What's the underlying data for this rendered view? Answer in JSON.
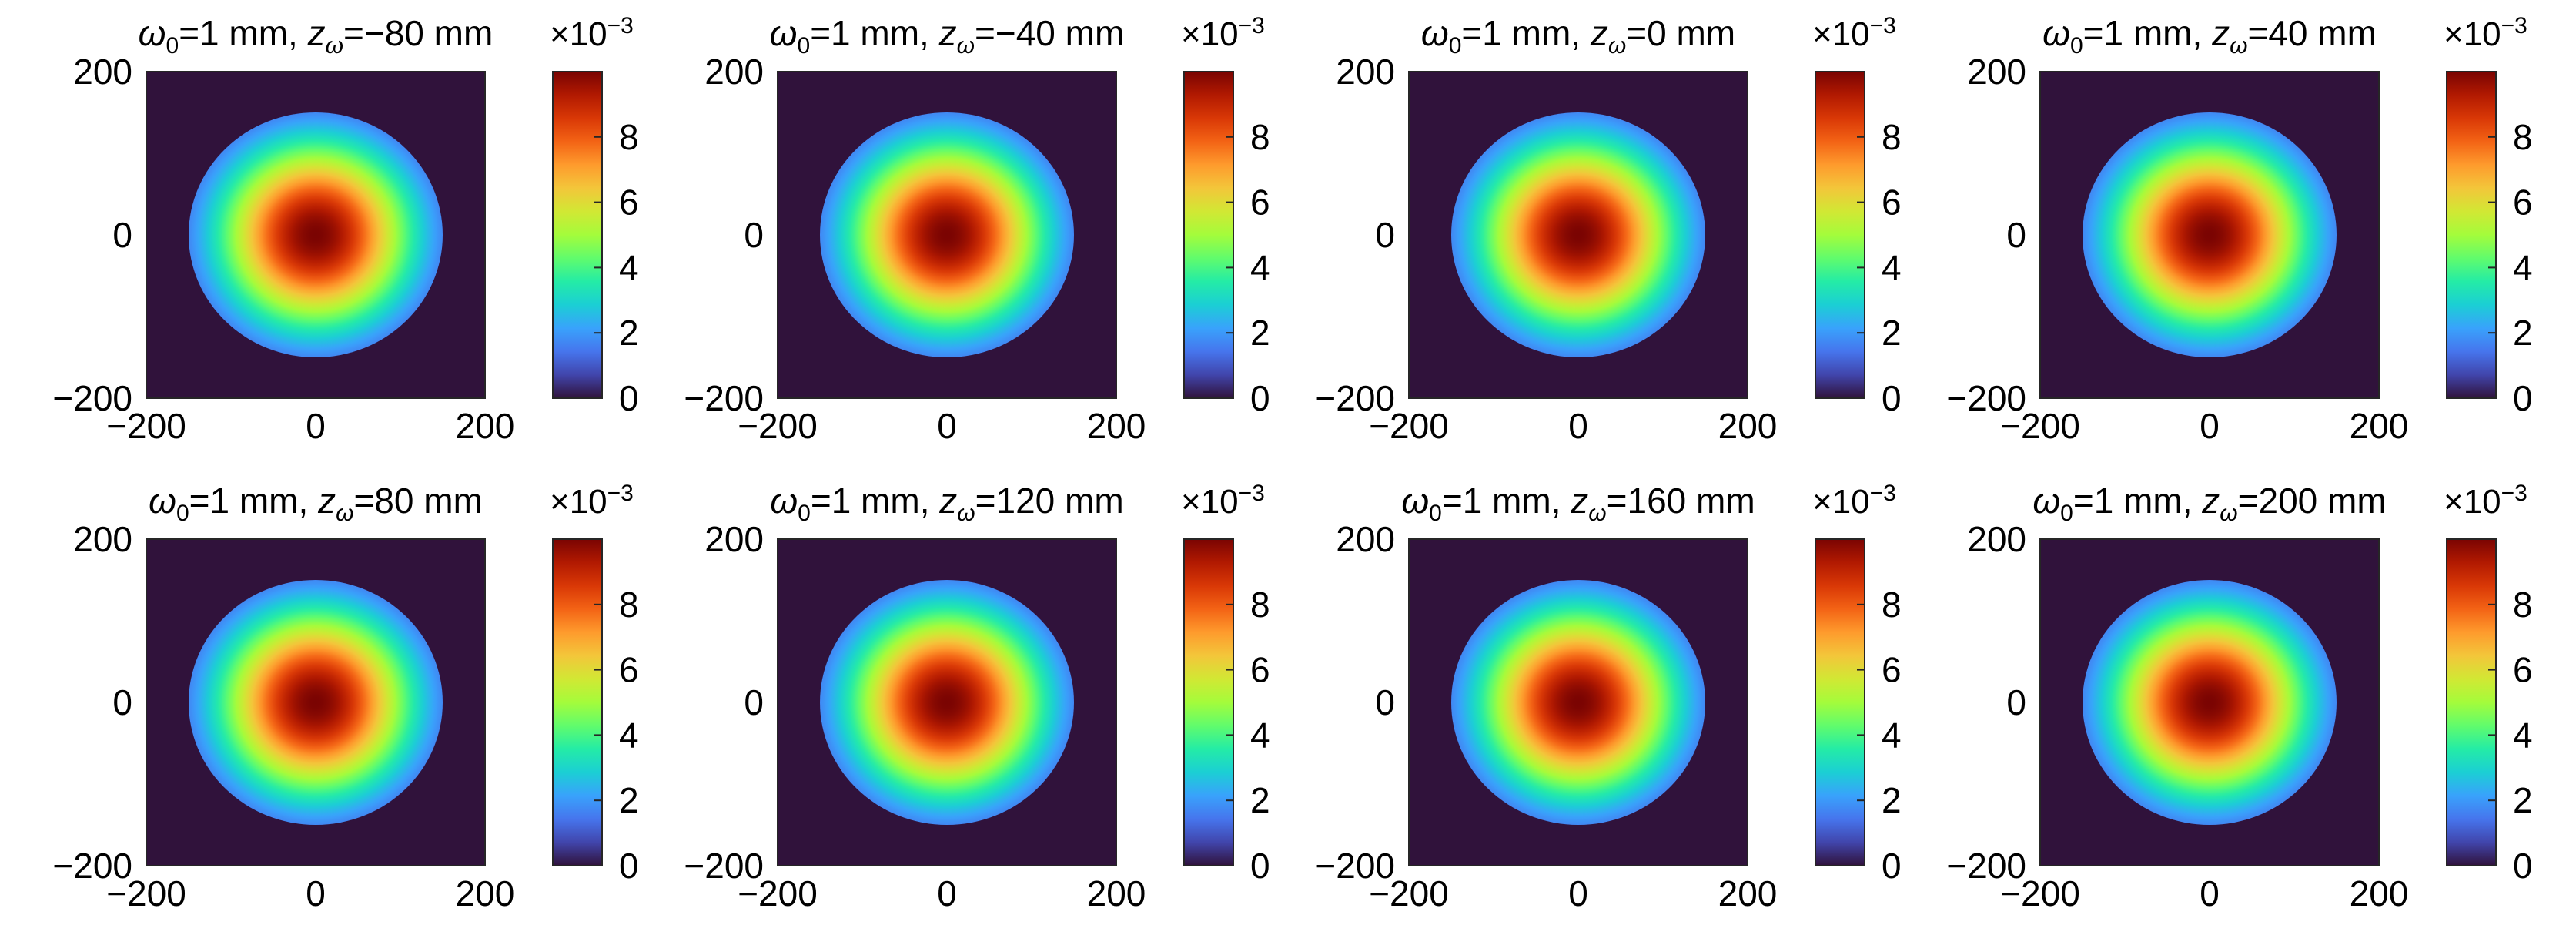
{
  "chart_data": {
    "type": "heatmap",
    "layout": "2x4 grid",
    "colormap": "turbo",
    "beam_waist": "1 mm",
    "grid": false,
    "xlim": [
      -200,
      200
    ],
    "ylim": [
      -200,
      200
    ],
    "xticks": [
      -200,
      0,
      200
    ],
    "yticks": [
      -200,
      0,
      200
    ],
    "clim": [
      0,
      0.01
    ],
    "colorbar_ticks": [
      0,
      2,
      4,
      6,
      8
    ],
    "colorbar_multiplier": "×10",
    "colorbar_exponent": "−3",
    "background_value": 0,
    "aperture_radius": 150,
    "peak_value": 0.01,
    "gaussian_radius": 160,
    "panels": [
      {
        "title_prefix": "=1 mm, ",
        "z_value": "=−80 mm"
      },
      {
        "title_prefix": "=1 mm, ",
        "z_value": "=−40 mm"
      },
      {
        "title_prefix": "=1 mm, ",
        "z_value": "=0 mm"
      },
      {
        "title_prefix": "=1 mm, ",
        "z_value": "=40 mm"
      },
      {
        "title_prefix": "=1 mm, ",
        "z_value": "=80 mm"
      },
      {
        "title_prefix": "=1 mm, ",
        "z_value": "=120 mm"
      },
      {
        "title_prefix": "=1 mm, ",
        "z_value": "=160 mm"
      },
      {
        "title_prefix": "=1 mm, ",
        "z_value": "=200 mm"
      }
    ],
    "symbols": {
      "omega": "ω",
      "omega_sub": "0",
      "z": "z",
      "z_sub": "ω"
    }
  }
}
